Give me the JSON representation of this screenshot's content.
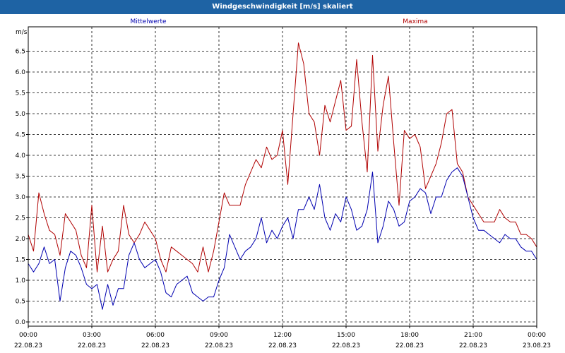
{
  "window": {
    "title": "Windgeschwindigkeit [m/s] skaliert"
  },
  "colors": {
    "titlebar": "#1e63a4",
    "mean": "#0000b0",
    "max": "#b00000",
    "grid": "#000000",
    "plot_border": "#000000"
  },
  "chart_data": {
    "type": "line",
    "title": "Windgeschwindigkeit [m/s] skaliert",
    "ylabel": "m/s",
    "xlabel": "",
    "ylim": [
      0,
      7
    ],
    "yticks": [
      "0.0",
      "0.5",
      "1.0",
      "1.5",
      "2.0",
      "2.5",
      "3.0",
      "3.5",
      "4.0",
      "4.5",
      "5.0",
      "5.5",
      "6.0",
      "6.5"
    ],
    "ytick_values": [
      0,
      0.5,
      1,
      1.5,
      2,
      2.5,
      3,
      3.5,
      4,
      4.5,
      5,
      5.5,
      6,
      6.5
    ],
    "xlim_hours": [
      0,
      24
    ],
    "xticks": [
      {
        "hour": 0,
        "time": "00:00",
        "date": "22.08.23"
      },
      {
        "hour": 3,
        "time": "03:00",
        "date": "22.08.23"
      },
      {
        "hour": 6,
        "time": "06:00",
        "date": "22.08.23"
      },
      {
        "hour": 9,
        "time": "09:00",
        "date": "22.08.23"
      },
      {
        "hour": 12,
        "time": "12:00",
        "date": "22.08.23"
      },
      {
        "hour": 15,
        "time": "15:00",
        "date": "22.08.23"
      },
      {
        "hour": 18,
        "time": "18:00",
        "date": "22.08.23"
      },
      {
        "hour": 21,
        "time": "21:00",
        "date": "22.08.23"
      },
      {
        "hour": 24,
        "time": "00:00",
        "date": "23.08.23"
      }
    ],
    "grid": true,
    "legend_position": "top",
    "series": [
      {
        "name": "Mittelwerte",
        "color": "#0000b0",
        "x": [
          0,
          0.25,
          0.5,
          0.75,
          1,
          1.25,
          1.5,
          1.75,
          2,
          2.25,
          2.5,
          2.75,
          3,
          3.25,
          3.5,
          3.75,
          4,
          4.25,
          4.5,
          4.75,
          5,
          5.25,
          5.5,
          5.75,
          6,
          6.25,
          6.5,
          6.75,
          7,
          7.25,
          7.5,
          7.75,
          8,
          8.25,
          8.5,
          8.75,
          9,
          9.25,
          9.5,
          9.75,
          10,
          10.25,
          10.5,
          10.75,
          11,
          11.25,
          11.5,
          11.75,
          12,
          12.25,
          12.5,
          12.75,
          13,
          13.25,
          13.5,
          13.75,
          14,
          14.25,
          14.5,
          14.75,
          15,
          15.25,
          15.5,
          15.75,
          16,
          16.25,
          16.5,
          16.75,
          17,
          17.25,
          17.5,
          17.75,
          18,
          18.25,
          18.5,
          18.75,
          19,
          19.25,
          19.5,
          19.75,
          20,
          20.25,
          20.5,
          20.75,
          21,
          21.25,
          21.5,
          21.75,
          22,
          22.25,
          22.5,
          22.75,
          23,
          23.25,
          23.5,
          23.75,
          24
        ],
        "values": [
          1.4,
          1.2,
          1.4,
          1.8,
          1.4,
          1.5,
          0.5,
          1.3,
          1.7,
          1.6,
          1.3,
          0.9,
          0.8,
          0.9,
          0.3,
          0.9,
          0.4,
          0.8,
          0.8,
          1.6,
          1.9,
          1.5,
          1.3,
          1.4,
          1.5,
          1.2,
          0.7,
          0.6,
          0.9,
          1.0,
          1.1,
          0.7,
          0.6,
          0.5,
          0.6,
          0.6,
          1.0,
          1.3,
          2.1,
          1.8,
          1.5,
          1.7,
          1.8,
          2.0,
          2.5,
          1.9,
          2.2,
          2.0,
          2.3,
          2.5,
          2.0,
          2.7,
          2.7,
          3.0,
          2.7,
          3.3,
          2.5,
          2.2,
          2.6,
          2.4,
          3.0,
          2.7,
          2.2,
          2.3,
          2.7,
          3.6,
          1.9,
          2.3,
          2.9,
          2.7,
          2.3,
          2.4,
          2.9,
          3.0,
          3.2,
          3.1,
          2.6,
          3.0,
          3.0,
          3.4,
          3.6,
          3.7,
          3.5,
          3.0,
          2.5,
          2.2,
          2.2,
          2.1,
          2.0,
          1.9,
          2.1,
          2.0,
          2.0,
          1.8,
          1.7,
          1.7,
          1.5
        ]
      },
      {
        "name": "Maxima",
        "color": "#b00000",
        "x": [
          0,
          0.25,
          0.5,
          0.75,
          1,
          1.25,
          1.5,
          1.75,
          2,
          2.25,
          2.5,
          2.75,
          3,
          3.25,
          3.5,
          3.75,
          4,
          4.25,
          4.5,
          4.75,
          5,
          5.25,
          5.5,
          5.75,
          6,
          6.25,
          6.5,
          6.75,
          7,
          7.25,
          7.5,
          7.75,
          8,
          8.25,
          8.5,
          8.75,
          9,
          9.25,
          9.5,
          9.75,
          10,
          10.25,
          10.5,
          10.75,
          11,
          11.25,
          11.5,
          11.75,
          12,
          12.25,
          12.5,
          12.75,
          13,
          13.25,
          13.5,
          13.75,
          14,
          14.25,
          14.5,
          14.75,
          15,
          15.25,
          15.5,
          15.75,
          16,
          16.25,
          16.5,
          16.75,
          17,
          17.25,
          17.5,
          17.75,
          18,
          18.25,
          18.5,
          18.75,
          19,
          19.25,
          19.5,
          19.75,
          20,
          20.25,
          20.5,
          20.75,
          21,
          21.25,
          21.5,
          21.75,
          22,
          22.25,
          22.5,
          22.75,
          23,
          23.25,
          23.5,
          23.75,
          24
        ],
        "values": [
          2.1,
          1.7,
          3.1,
          2.6,
          2.2,
          2.1,
          1.6,
          2.6,
          2.4,
          2.2,
          1.6,
          1.3,
          2.8,
          1.2,
          2.3,
          1.2,
          1.5,
          1.7,
          2.8,
          2.1,
          1.9,
          2.1,
          2.4,
          2.2,
          2.0,
          1.5,
          1.2,
          1.8,
          1.7,
          1.6,
          1.5,
          1.4,
          1.2,
          1.8,
          1.2,
          1.7,
          2.4,
          3.1,
          2.8,
          2.8,
          2.8,
          3.3,
          3.6,
          3.9,
          3.7,
          4.2,
          3.9,
          4.0,
          4.6,
          3.3,
          5.0,
          6.7,
          6.2,
          5.0,
          4.8,
          4.0,
          5.2,
          4.8,
          5.3,
          5.8,
          4.6,
          4.7,
          6.3,
          4.8,
          3.6,
          6.4,
          4.1,
          5.2,
          5.9,
          4.3,
          2.8,
          4.6,
          4.4,
          4.5,
          4.2,
          3.2,
          3.5,
          3.8,
          4.3,
          5.0,
          5.1,
          3.8,
          3.6,
          3.0,
          2.8,
          2.6,
          2.4,
          2.4,
          2.4,
          2.7,
          2.5,
          2.4,
          2.4,
          2.1,
          2.1,
          2.0,
          1.8
        ]
      }
    ]
  }
}
